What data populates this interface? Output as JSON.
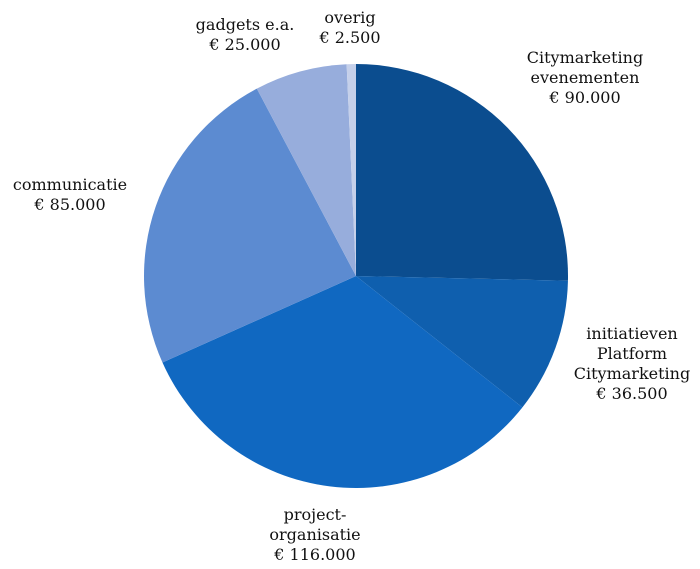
{
  "chart_data": {
    "type": "pie",
    "start_angle_deg": 0,
    "direction": "clockwise",
    "slices": [
      {
        "label_lines": [
          "Citymarketing",
          "evenementen"
        ],
        "value_label": "€ 90.000",
        "value": 90000,
        "color": "#0b4d8f"
      },
      {
        "label_lines": [
          "initiatieven",
          "Platform",
          "Citymarketing"
        ],
        "value_label": "€ 36.500",
        "value": 36500,
        "color": "#0f5fae"
      },
      {
        "label_lines": [
          "project-",
          "organisatie"
        ],
        "value_label": "€ 116.000",
        "value": 116000,
        "color": "#1068c1"
      },
      {
        "label_lines": [
          "communicatie"
        ],
        "value_label": "€ 85.000",
        "value": 85000,
        "color": "#5c8bd1"
      },
      {
        "label_lines": [
          "gadgets e.a."
        ],
        "value_label": "€ 25.000",
        "value": 25000,
        "color": "#97addc"
      },
      {
        "label_lines": [
          "overig"
        ],
        "value_label": "€ 2.500",
        "value": 2500,
        "color": "#c5d0ea"
      }
    ]
  }
}
